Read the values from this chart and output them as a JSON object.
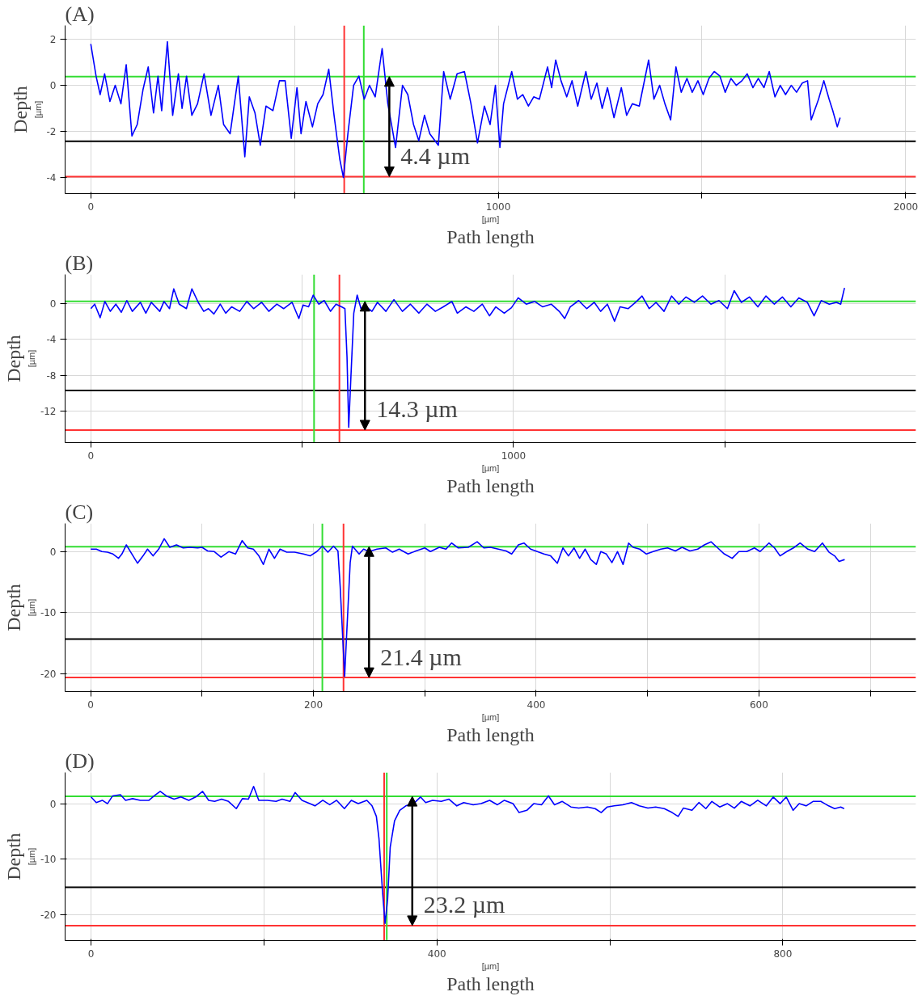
{
  "chart_data": [
    {
      "type": "line",
      "title": "(A)",
      "xlabel": "Path length",
      "ylabel": "Depth",
      "xlim": [
        -63,
        2025
      ],
      "ylim": [
        -4.7,
        2.6
      ],
      "xticks": [
        0,
        {
          "value": 500,
          "label": null
        },
        1000,
        {
          "value": 1500,
          "label": null
        },
        2000
      ],
      "yticks": [
        2,
        0,
        -2,
        -4
      ],
      "grid": true,
      "annotations": [
        "[µm]",
        "[µm]",
        "4.4 µm"
      ],
      "ref_lines": [
        {
          "axis": "y",
          "value": 0.38,
          "color": "#33dd33"
        },
        {
          "axis": "y",
          "value": -2.43,
          "color": "#000000"
        },
        {
          "axis": "y",
          "value": -3.96,
          "color": "#ff3333"
        },
        {
          "axis": "x",
          "value": 622,
          "color": "#ff3333"
        },
        {
          "axis": "x",
          "value": 670,
          "color": "#33dd33"
        }
      ],
      "series": [
        {
          "color": "#0000ff",
          "x": [
            0,
            13,
            23,
            34,
            47,
            60,
            74,
            87,
            101,
            114,
            128,
            141,
            154,
            165,
            174,
            188,
            201,
            215,
            224,
            235,
            248,
            262,
            278,
            295,
            313,
            326,
            342,
            362,
            378,
            389,
            403,
            416,
            430,
            447,
            463,
            477,
            492,
            506,
            516,
            528,
            544,
            557,
            570,
            584,
            597,
            611,
            620,
            631,
            645,
            658,
            671,
            684,
            698,
            715,
            729,
            748,
            765,
            778,
            792,
            805,
            819,
            832,
            853,
            866,
            882,
            899,
            917,
            933,
            949,
            966,
            980,
            993,
            1004,
            1013,
            1033,
            1047,
            1060,
            1074,
            1087,
            1101,
            1121,
            1131,
            1141,
            1154,
            1168,
            1181,
            1195,
            1215,
            1228,
            1242,
            1255,
            1268,
            1284,
            1302,
            1315,
            1329,
            1346,
            1369,
            1382,
            1396,
            1409,
            1423,
            1436,
            1449,
            1463,
            1476,
            1490,
            1503,
            1517,
            1530,
            1544,
            1557,
            1571,
            1584,
            1598,
            1611,
            1625,
            1638,
            1652,
            1665,
            1679,
            1692,
            1705,
            1719,
            1732,
            1746,
            1759,
            1768,
            1786,
            1799,
            1812,
            1821,
            1832,
            1839
          ],
          "values": [
            1.8,
            0.4,
            -0.4,
            0.5,
            -0.7,
            0,
            -0.8,
            0.9,
            -2.2,
            -1.7,
            -0.2,
            0.8,
            -1.2,
            0.4,
            -1.1,
            1.9,
            -1.3,
            0.5,
            -1.0,
            0.4,
            -1.3,
            -0.8,
            0.5,
            -1.3,
            0,
            -1.7,
            -2.1,
            0.4,
            -3.1,
            -0.5,
            -1.2,
            -2.6,
            -0.9,
            -1.1,
            0.2,
            0.2,
            -2.3,
            -0.1,
            -2.1,
            -0.7,
            -1.8,
            -0.8,
            -0.4,
            0.7,
            -1.3,
            -3.2,
            -4.0,
            -2.1,
            0,
            0.4,
            -0.6,
            0,
            -0.5,
            1.6,
            -0.8,
            -2.7,
            0,
            -0.4,
            -1.7,
            -2.4,
            -1.3,
            -2.1,
            -2.6,
            0.6,
            -0.6,
            0.5,
            0.6,
            -0.8,
            -2.5,
            -0.9,
            -1.7,
            0,
            -2.7,
            -0.8,
            0.6,
            -0.6,
            -0.4,
            -0.9,
            -0.5,
            -0.6,
            0.8,
            -0.1,
            1.1,
            0.2,
            -0.5,
            0.2,
            -0.9,
            0.6,
            -0.6,
            0.1,
            -1.0,
            -0.1,
            -1.4,
            -0.1,
            -1.3,
            -0.8,
            -0.9,
            1.1,
            -0.6,
            0,
            -0.8,
            -1.5,
            0.8,
            -0.3,
            0.3,
            -0.3,
            0.2,
            -0.4,
            0.3,
            0.6,
            0.4,
            -0.3,
            0.3,
            0,
            0.2,
            0.5,
            -0.1,
            0.3,
            -0.1,
            0.6,
            -0.5,
            0,
            -0.4,
            0,
            -0.3,
            0.1,
            0.2,
            -1.5,
            -0.6,
            0.2,
            -0.6,
            -1.1,
            -1.8,
            -1.4
          ]
        }
      ]
    },
    {
      "type": "line",
      "title": "(B)",
      "xlabel": "Path length",
      "ylabel": "Depth",
      "xlim": [
        -61,
        1952
      ],
      "ylim": [
        -15.5,
        3.2
      ],
      "xticks": [
        0,
        {
          "value": 500,
          "label": null
        },
        1000,
        {
          "value": 1500,
          "label": null
        }
      ],
      "yticks": [
        0,
        -4,
        -8,
        -12
      ],
      "grid": true,
      "annotations": [
        "[µm]",
        "[µm]",
        "14.3 µm"
      ],
      "ref_lines": [
        {
          "axis": "y",
          "value": 0.2,
          "color": "#33dd33"
        },
        {
          "axis": "y",
          "value": -9.7,
          "color": "#000000"
        },
        {
          "axis": "y",
          "value": -14.1,
          "color": "#ff3333"
        },
        {
          "axis": "x",
          "value": 528,
          "color": "#33dd33"
        },
        {
          "axis": "x",
          "value": 588,
          "color": "#ff3333"
        }
      ],
      "series": [
        {
          "color": "#0000ff",
          "x": [
            0,
            9,
            22,
            33,
            46,
            59,
            72,
            85,
            98,
            117,
            130,
            143,
            163,
            173,
            186,
            196,
            209,
            226,
            239,
            254,
            267,
            278,
            291,
            306,
            319,
            333,
            352,
            369,
            385,
            404,
            421,
            440,
            456,
            476,
            492,
            502,
            515,
            526,
            539,
            552,
            567,
            580,
            593,
            601,
            606,
            610,
            615,
            622,
            630,
            639,
            652,
            665,
            678,
            698,
            717,
            737,
            756,
            776,
            795,
            815,
            834,
            854,
            867,
            887,
            906,
            926,
            943,
            958,
            978,
            995,
            1011,
            1030,
            1050,
            1069,
            1089,
            1108,
            1121,
            1134,
            1154,
            1173,
            1191,
            1206,
            1222,
            1239,
            1252,
            1271,
            1291,
            1304,
            1321,
            1337,
            1356,
            1374,
            1391,
            1408,
            1428,
            1447,
            1467,
            1486,
            1506,
            1522,
            1539,
            1558,
            1578,
            1597,
            1617,
            1636,
            1656,
            1675,
            1695,
            1711,
            1728,
            1747,
            1764,
            1774,
            1783
          ],
          "values": [
            -0.6,
            -0.1,
            -1.6,
            0.2,
            -0.9,
            -0.1,
            -1.0,
            0.3,
            -0.9,
            0.1,
            -1.1,
            0.1,
            -0.9,
            0.2,
            -0.6,
            1.6,
            -0.1,
            -0.6,
            1.6,
            0.1,
            -0.9,
            -0.6,
            -1.2,
            -0.1,
            -1.1,
            -0.4,
            -0.9,
            0.2,
            -0.6,
            0.1,
            -0.9,
            -0.1,
            -0.6,
            0.1,
            -1.7,
            -0.2,
            -0.4,
            0.9,
            -0.1,
            0.3,
            -0.9,
            -0.1,
            -0.4,
            -0.6,
            -6.0,
            -13.8,
            -8.4,
            -1.1,
            0.9,
            -0.6,
            -0.4,
            -0.9,
            0.1,
            -0.9,
            0.4,
            -0.9,
            -0.1,
            -1.1,
            -0.1,
            -0.9,
            -0.4,
            0.2,
            -1.1,
            -0.4,
            -0.9,
            -0.1,
            -1.4,
            -0.4,
            -1.1,
            -0.5,
            0.6,
            -0.1,
            0.2,
            -0.4,
            -0.1,
            -0.9,
            -1.7,
            -0.4,
            0.3,
            -0.6,
            0.1,
            -0.9,
            -0.1,
            -2.0,
            -0.4,
            -0.6,
            0.2,
            0.8,
            -0.6,
            0.1,
            -0.9,
            0.8,
            -0.1,
            0.7,
            0.1,
            0.8,
            -0.1,
            0.3,
            -0.6,
            1.4,
            0.1,
            0.7,
            -0.4,
            0.8,
            -0.1,
            0.7,
            -0.4,
            0.6,
            0.1,
            -1.4,
            0.3,
            -0.1,
            0.1,
            -0.1,
            1.7
          ]
        }
      ]
    },
    {
      "type": "line",
      "title": "(C)",
      "xlabel": "Path length",
      "ylabel": "Depth",
      "xlim": [
        -23,
        741
      ],
      "ylim": [
        -22.9,
        4.6
      ],
      "xticks": [
        0,
        {
          "value": 100,
          "label": null
        },
        200,
        {
          "value": 300,
          "label": null
        },
        400,
        {
          "value": 500,
          "label": null
        },
        600,
        {
          "value": 700,
          "label": null
        }
      ],
      "yticks": [
        0,
        -10,
        -20
      ],
      "grid": true,
      "annotations": [
        "[µm]",
        "[µm]",
        "21.4 µm"
      ],
      "ref_lines": [
        {
          "axis": "y",
          "value": 0.8,
          "color": "#33dd33"
        },
        {
          "axis": "y",
          "value": -14.3,
          "color": "#000000"
        },
        {
          "axis": "y",
          "value": -20.6,
          "color": "#ff3333"
        },
        {
          "axis": "x",
          "value": 208,
          "color": "#33dd33"
        },
        {
          "axis": "x",
          "value": 227,
          "color": "#ff3333"
        }
      ],
      "series": [
        {
          "color": "#0000ff",
          "x": [
            0,
            5,
            10,
            15,
            20,
            25,
            28,
            32,
            37,
            42,
            47,
            51,
            56,
            61,
            66,
            71,
            77,
            83,
            89,
            96,
            100,
            105,
            111,
            117,
            124,
            130,
            136,
            141,
            146,
            151,
            155,
            160,
            165,
            170,
            176,
            183,
            191,
            197,
            203,
            208,
            213,
            218,
            222,
            224,
            228,
            230,
            233,
            235,
            241,
            245,
            250,
            257,
            265,
            271,
            277,
            285,
            292,
            300,
            305,
            313,
            319,
            324,
            330,
            339,
            347,
            353,
            359,
            366,
            373,
            378,
            384,
            389,
            395,
            401,
            407,
            413,
            419,
            424,
            429,
            434,
            439,
            444,
            449,
            454,
            458,
            463,
            468,
            473,
            478,
            483,
            487,
            493,
            499,
            505,
            512,
            518,
            525,
            531,
            538,
            545,
            551,
            557,
            563,
            569,
            576,
            582,
            589,
            596,
            601,
            609,
            614,
            619,
            625,
            631,
            637,
            644,
            650,
            657,
            663,
            668,
            672,
            677
          ],
          "values": [
            0.4,
            0.4,
            0,
            -0.1,
            -0.4,
            -1.1,
            -0.4,
            1.1,
            -0.4,
            -1.9,
            -0.7,
            0.4,
            -0.7,
            0.4,
            2.1,
            0.7,
            1.1,
            0.6,
            0.7,
            0.6,
            0.7,
            0.1,
            0,
            -0.9,
            0,
            -0.4,
            1.8,
            0.6,
            0.4,
            -0.7,
            -2.1,
            0.4,
            -1.1,
            0.4,
            -0.1,
            -0.1,
            -0.4,
            -0.7,
            0,
            0.9,
            -0.1,
            0.9,
            0.1,
            -5.7,
            -20.4,
            -12.9,
            -1.8,
            0.9,
            -0.4,
            0.4,
            0,
            0.4,
            0.6,
            -0.1,
            0.4,
            -0.4,
            0.1,
            0.6,
            0,
            0.7,
            0.4,
            1.4,
            0.6,
            0.7,
            1.6,
            0.6,
            0.7,
            0.4,
            0.1,
            -0.4,
            1.1,
            1.4,
            0.4,
            0,
            -0.4,
            -0.7,
            -1.9,
            0.6,
            -0.7,
            0.6,
            -1.1,
            0.4,
            -1.3,
            -2.1,
            0,
            -0.4,
            -1.8,
            0,
            -2.1,
            1.4,
            0.7,
            0.4,
            -0.4,
            0,
            0.4,
            0.6,
            0.1,
            0.7,
            0.1,
            0.4,
            1.1,
            1.6,
            0.6,
            -0.4,
            -1.1,
            0,
            0,
            0.6,
            0,
            1.4,
            0.6,
            -0.7,
            0,
            0.6,
            1.4,
            0.4,
            0,
            1.4,
            -0.1,
            -0.7,
            -1.6,
            -1.3
          ]
        }
      ]
    },
    {
      "type": "line",
      "title": "(D)",
      "xlabel": "Path length",
      "ylabel": "Depth",
      "xlim": [
        -30,
        954
      ],
      "ylim": [
        -24.6,
        5.6
      ],
      "xticks": [
        0,
        {
          "value": 200,
          "label": null
        },
        400,
        {
          "value": 600,
          "label": null
        },
        800
      ],
      "yticks": [
        0,
        -10,
        -20
      ],
      "grid": true,
      "annotations": [
        "[µm]",
        "[µm]",
        "23.2 µm"
      ],
      "ref_lines": [
        {
          "axis": "y",
          "value": 1.3,
          "color": "#33dd33"
        },
        {
          "axis": "y",
          "value": -15.0,
          "color": "#000000"
        },
        {
          "axis": "y",
          "value": -21.9,
          "color": "#ff3333"
        },
        {
          "axis": "x",
          "value": 339,
          "color": "#ff3333"
        },
        {
          "axis": "x",
          "value": 342,
          "color": "#33dd33"
        }
      ],
      "series": [
        {
          "color": "#0000ff",
          "x": [
            0,
            6,
            13,
            19,
            25,
            34,
            40,
            48,
            57,
            67,
            73,
            80,
            87,
            96,
            104,
            113,
            121,
            129,
            136,
            143,
            151,
            159,
            168,
            175,
            182,
            188,
            194,
            204,
            214,
            221,
            230,
            236,
            244,
            253,
            259,
            268,
            276,
            284,
            293,
            301,
            309,
            319,
            325,
            330,
            333,
            337,
            340,
            343,
            346,
            351,
            357,
            364,
            373,
            381,
            387,
            395,
            405,
            414,
            423,
            431,
            442,
            451,
            461,
            470,
            478,
            488,
            495,
            504,
            512,
            521,
            529,
            536,
            545,
            555,
            564,
            574,
            583,
            590,
            597,
            605,
            615,
            625,
            634,
            644,
            653,
            663,
            672,
            679,
            685,
            695,
            703,
            711,
            718,
            727,
            736,
            744,
            752,
            762,
            771,
            781,
            789,
            797,
            804,
            812,
            819,
            827,
            835,
            844,
            853,
            860,
            867,
            871
          ],
          "values": [
            1.2,
            0.2,
            0.6,
            0,
            1.4,
            1.6,
            0.6,
            0.9,
            0.6,
            0.6,
            1.4,
            2.2,
            1.4,
            0.8,
            1.2,
            0.6,
            1.2,
            2.2,
            0.6,
            0.4,
            0.8,
            0.4,
            -0.9,
            0.9,
            0.8,
            3.1,
            0.6,
            0.6,
            0.4,
            0.8,
            0.4,
            2.0,
            0.6,
            0,
            -0.4,
            0.6,
            -0.2,
            0.6,
            -0.9,
            0.6,
            0,
            0.6,
            -0.4,
            -2.3,
            -6.3,
            -15.6,
            -21.5,
            -17.2,
            -7.8,
            -3.1,
            -1.2,
            -0.4,
            0,
            1.2,
            0.2,
            0.6,
            0.4,
            0.8,
            -0.4,
            0.2,
            -0.2,
            0,
            0.6,
            -0.2,
            0.6,
            0,
            -1.6,
            -1.2,
            0,
            -0.2,
            1.4,
            -0.2,
            0.4,
            -0.6,
            -0.8,
            -0.6,
            -0.9,
            -1.6,
            -0.6,
            -0.4,
            -0.2,
            0.2,
            -0.4,
            -0.8,
            -0.6,
            -0.9,
            -1.6,
            -2.3,
            -0.8,
            -1.2,
            0.2,
            -0.9,
            0.4,
            -0.6,
            0,
            -0.8,
            0.4,
            -0.4,
            0.6,
            -0.4,
            1.2,
            0,
            1.2,
            -1.2,
            0,
            -0.4,
            0.4,
            0.4,
            -0.4,
            -0.9,
            -0.6,
            -0.9
          ]
        }
      ]
    }
  ]
}
